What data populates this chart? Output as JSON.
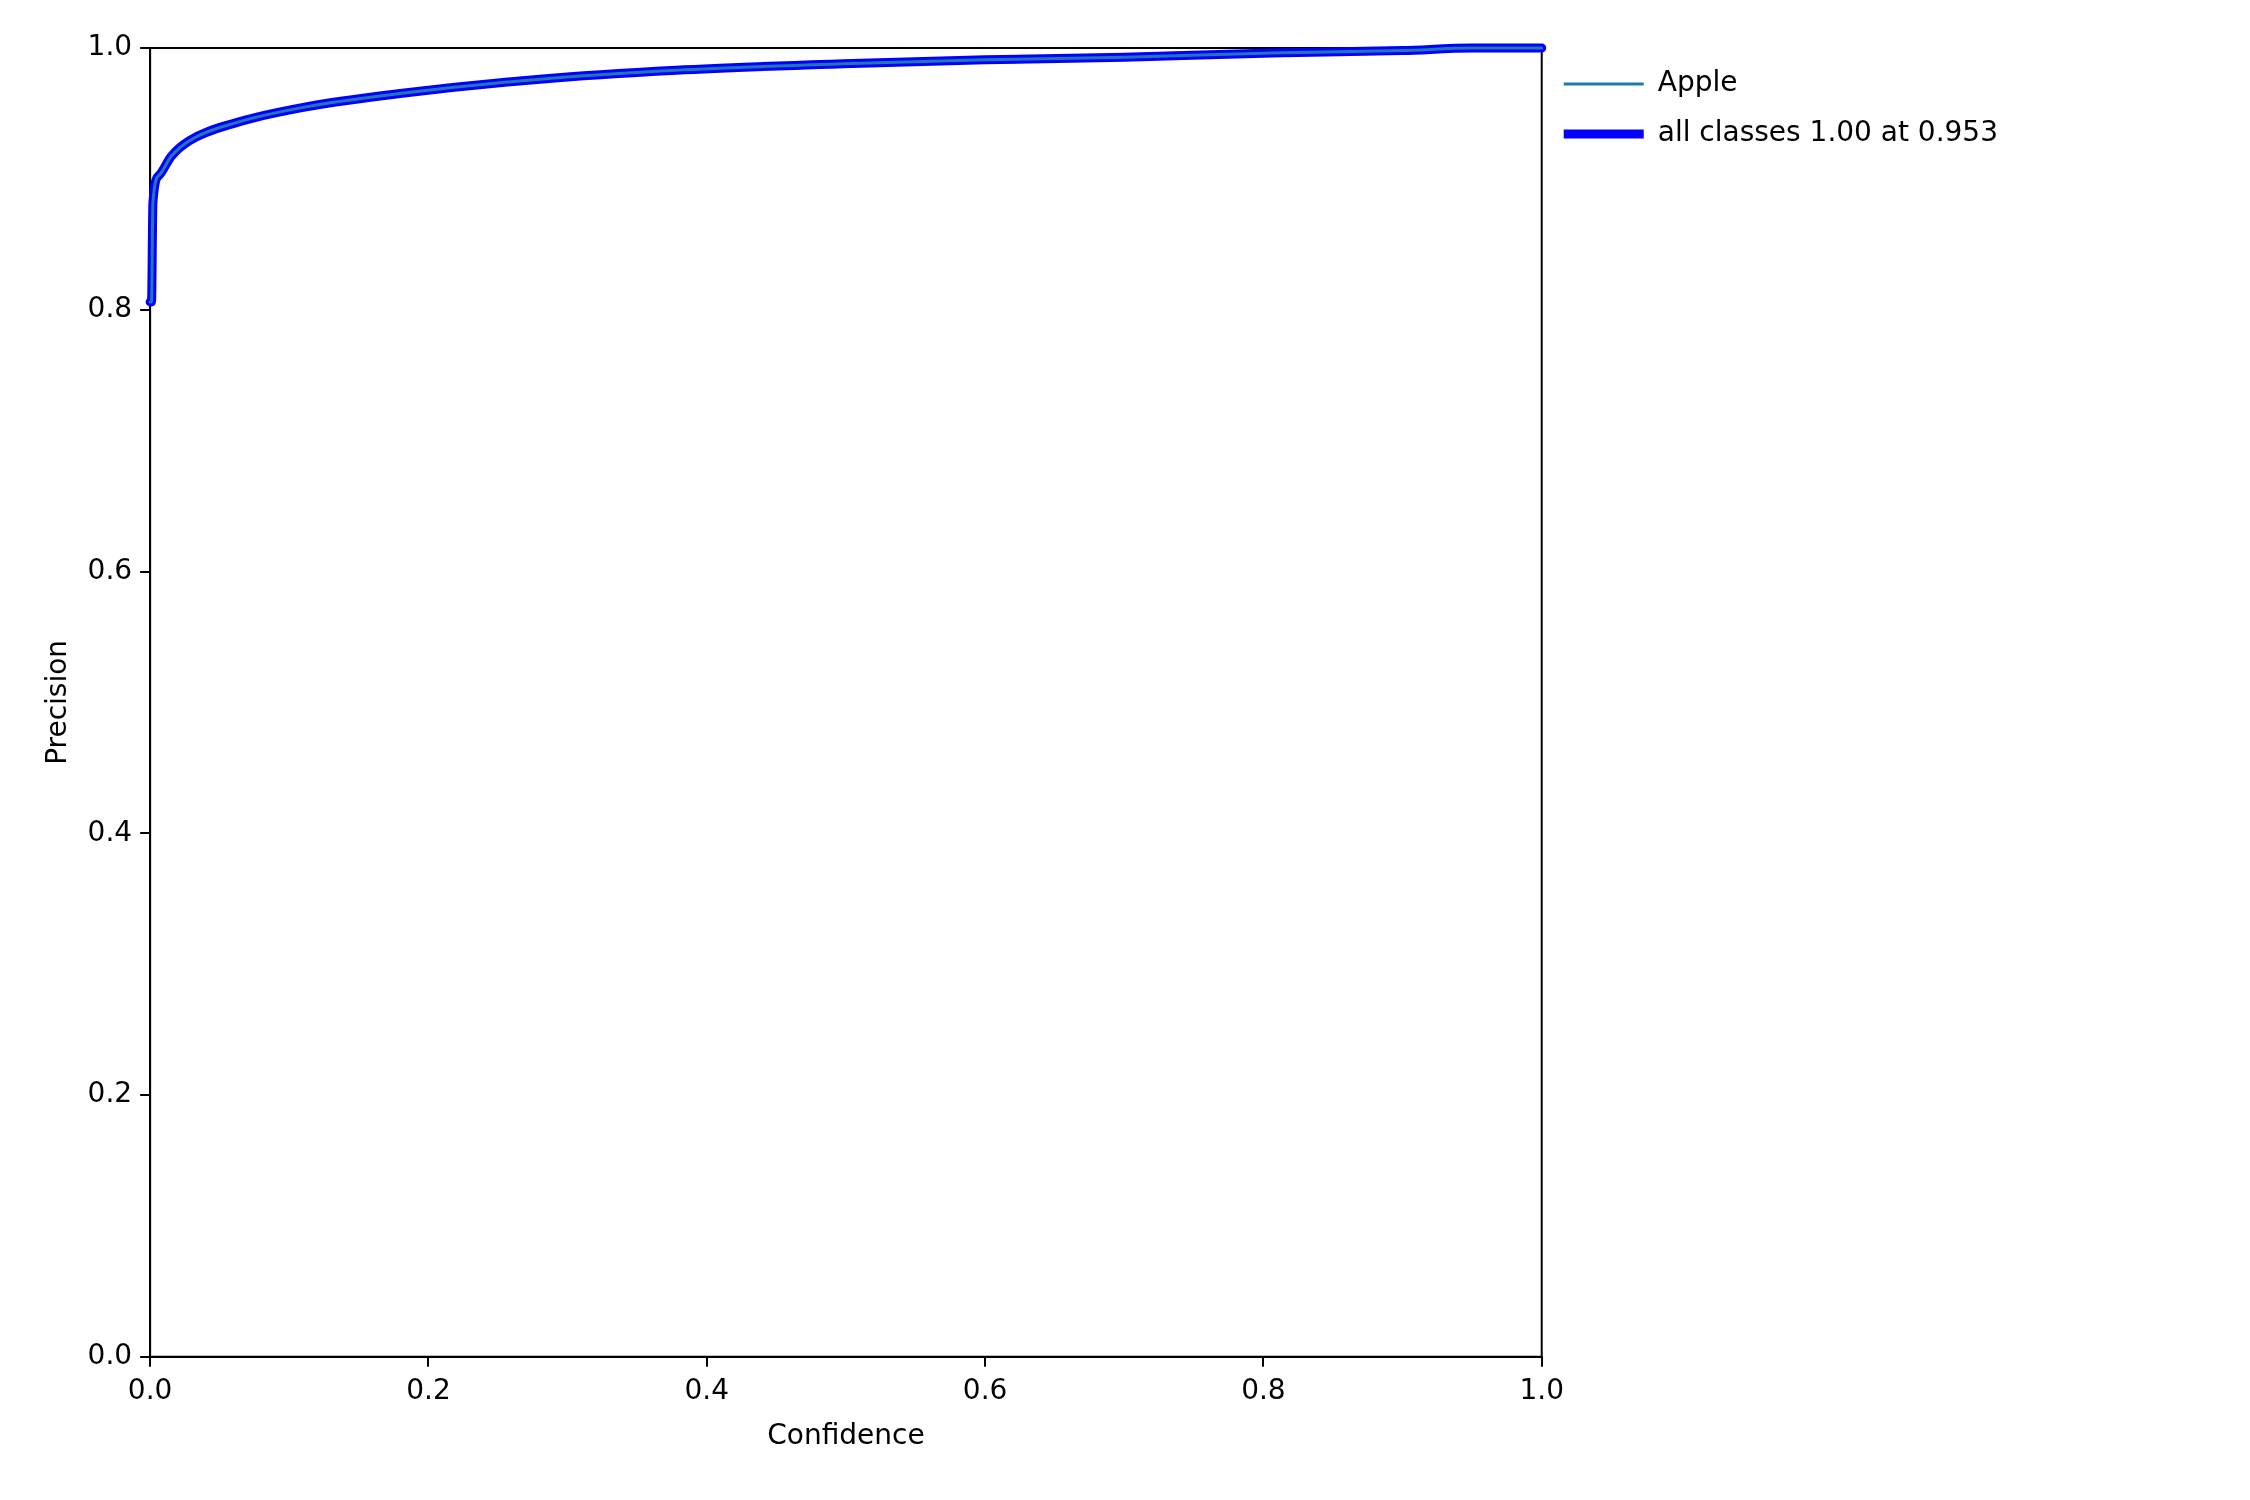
{
  "chart_data": {
    "type": "line",
    "xlabel": "Confidence",
    "ylabel": "Precision",
    "x": [
      0,
      0.001,
      0.002,
      0.0067,
      0.015,
      0.028,
      0.062,
      0.112,
      0.178,
      0.278,
      0.378,
      0.498,
      0.6,
      0.7,
      0.8,
      0.9,
      0.95,
      1.0
    ],
    "series": [
      {
        "name": "Apple",
        "color": "#1f77b4",
        "values": [
          0.806,
          0.806,
          0.882,
          0.903,
          0.917,
          0.929,
          0.943,
          0.955,
          0.965,
          0.976,
          0.983,
          0.988,
          0.991,
          0.993,
          0.996,
          0.998,
          1.0,
          1.0
        ]
      },
      {
        "name": "all classes 1.00 at 0.953",
        "color": "#0000ff",
        "values": [
          0.806,
          0.806,
          0.882,
          0.903,
          0.917,
          0.929,
          0.943,
          0.955,
          0.965,
          0.976,
          0.983,
          0.988,
          0.991,
          0.993,
          0.996,
          0.998,
          1.0,
          1.0
        ]
      }
    ],
    "xlim": [
      0,
      1
    ],
    "ylim": [
      0,
      1
    ],
    "xticks": [
      {
        "value": 0,
        "label": "0.0"
      },
      {
        "value": 0.2,
        "label": "0.2"
      },
      {
        "value": 0.4,
        "label": "0.4"
      },
      {
        "value": 0.6,
        "label": "0.6"
      },
      {
        "value": 0.8,
        "label": "0.8"
      },
      {
        "value": 1,
        "label": "1.0"
      }
    ],
    "yticks": [
      {
        "value": 0,
        "label": "0.0"
      },
      {
        "value": 0.2,
        "label": "0.2"
      },
      {
        "value": 0.4,
        "label": "0.4"
      },
      {
        "value": 0.6,
        "label": "0.6"
      },
      {
        "value": 0.8,
        "label": "0.8"
      },
      {
        "value": 1,
        "label": "1.0"
      }
    ],
    "grid": false,
    "legend": "top right"
  }
}
